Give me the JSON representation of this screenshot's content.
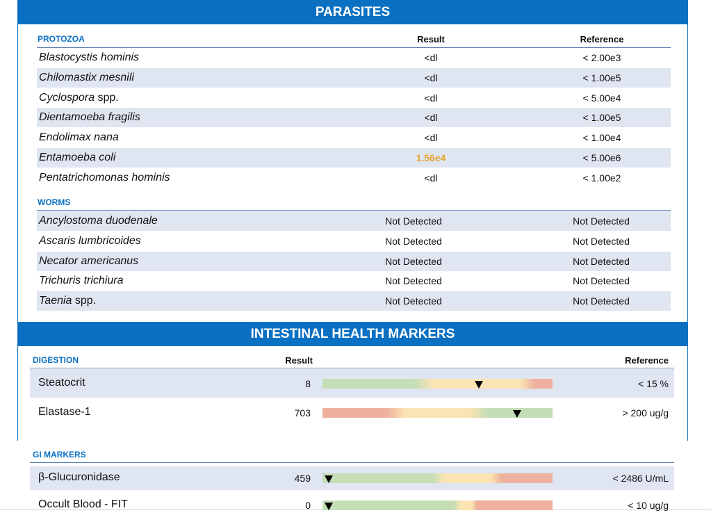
{
  "sections": [
    {
      "title": "PARASITES",
      "groups": [
        {
          "label": "PROTOZOA",
          "result_header": "Result",
          "reference_header": "Reference",
          "rows": [
            {
              "name": "Blastocystis hominis",
              "result": "<dl",
              "reference": "< 2.00e3"
            },
            {
              "name": "Chilomastix mesnili",
              "result": "<dl",
              "reference": "< 1.00e5"
            },
            {
              "name": "Cyclospora",
              "name_suffix": "spp.",
              "result": "<dl",
              "reference": "< 5.00e4"
            },
            {
              "name": "Dientamoeba fragilis",
              "result": "<dl",
              "reference": "< 1.00e5"
            },
            {
              "name": "Endolimax nana",
              "result": "<dl",
              "reference": "< 1.00e4"
            },
            {
              "name": "Entamoeba coli",
              "result": "1.56e4",
              "result_color": "#e8a534",
              "reference": "< 5.00e6"
            },
            {
              "name": "Pentatrichomonas hominis",
              "result": "<dl",
              "reference": "< 1.00e2"
            }
          ]
        },
        {
          "label": "WORMS",
          "rows": [
            {
              "name": "Ancylostoma duodenale",
              "result": "Not Detected",
              "reference": "Not Detected"
            },
            {
              "name": "Ascaris lumbricoides",
              "result": "Not Detected",
              "reference": "Not Detected"
            },
            {
              "name": "Necator americanus",
              "result": "Not Detected",
              "reference": "Not Detected"
            },
            {
              "name": "Trichuris trichiura",
              "result": "Not Detected",
              "reference": "Not Detected"
            },
            {
              "name": "Taenia",
              "name_suffix": "spp.",
              "result": "Not Detected",
              "reference": "Not Detected"
            }
          ]
        }
      ]
    },
    {
      "title": "INTESTINAL HEALTH MARKERS",
      "groups": [
        {
          "label": "DIGESTION",
          "result_header": "Result",
          "reference_header": "Reference",
          "rows": [
            {
              "name": "Steatocrit",
              "result": "8",
              "reference": "< 15 %"
            },
            {
              "name": "Elastase-1",
              "result": "703",
              "reference": "> 200 ug/g"
            }
          ]
        },
        {
          "label": "GI MARKERS",
          "rows": [
            {
              "name": "β-Glucuronidase",
              "result": "459",
              "reference": "< 2486 U/mL"
            },
            {
              "name": "Occult Blood - FIT",
              "result": "0",
              "reference": "< 10 ug/g"
            }
          ]
        }
      ]
    }
  ]
}
